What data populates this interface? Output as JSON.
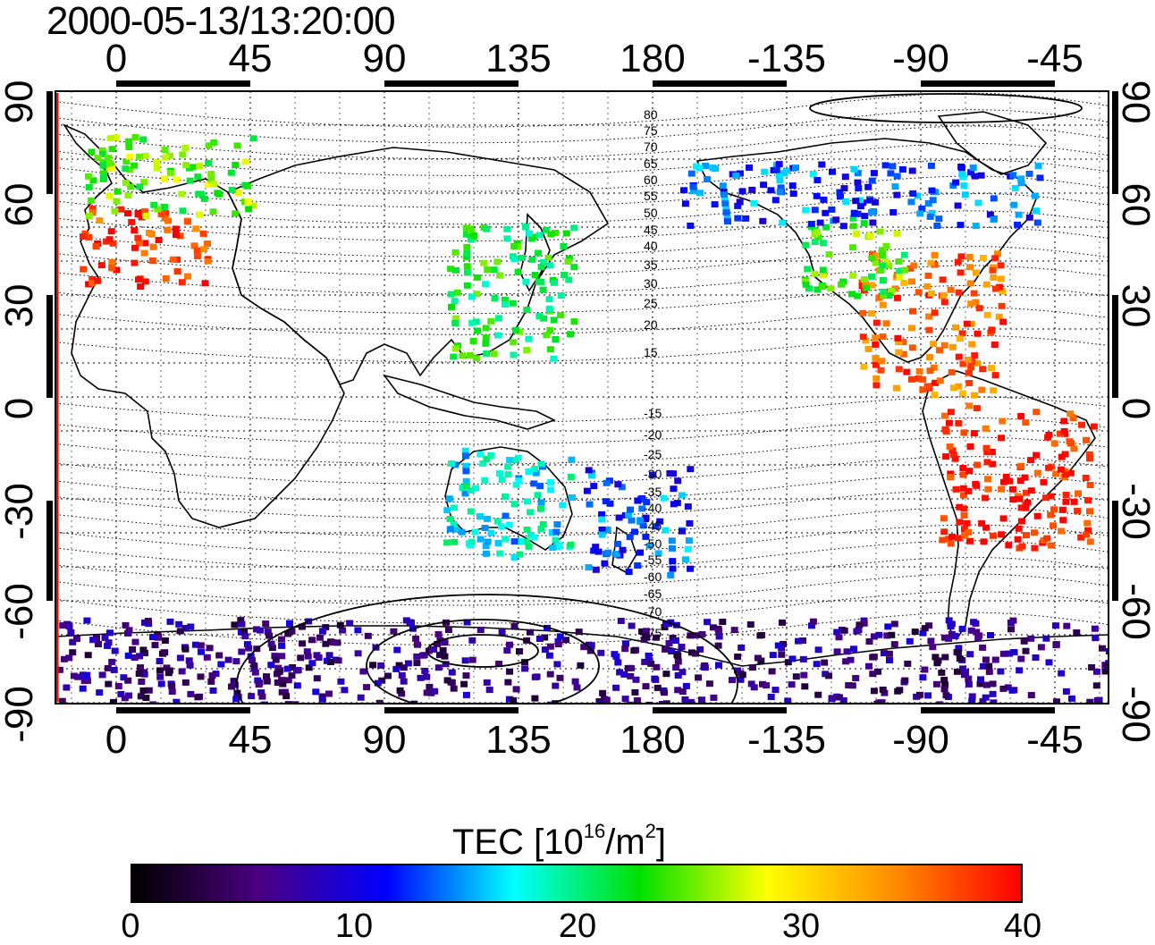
{
  "title": "2000-05-13/13:20:00",
  "map": {
    "longitude_ticks": [
      "0",
      "45",
      "90",
      "135",
      "180",
      "-135",
      "-90",
      "-45"
    ],
    "latitude_ticks": [
      "90",
      "60",
      "30",
      "0",
      "-30",
      "-60",
      "-90"
    ],
    "magnetic_latitude_labels": [
      "80",
      "75",
      "70",
      "65",
      "60",
      "55",
      "50",
      "45",
      "40",
      "35",
      "30",
      "25",
      "20",
      "15",
      "-15",
      "-20",
      "-25",
      "-30",
      "-35",
      "-40",
      "-45",
      "-50",
      "-55",
      "-60",
      "-65",
      "-70",
      "-75"
    ],
    "grid": "dotted",
    "tec_regions": [
      {
        "name": "europe",
        "tec": 38
      },
      {
        "name": "scandinavia",
        "tec": 25
      },
      {
        "name": "north-america-east",
        "tec": 36
      },
      {
        "name": "north-america-west",
        "tec": 24
      },
      {
        "name": "canada-north",
        "tec": 13
      },
      {
        "name": "japan",
        "tec": 22
      },
      {
        "name": "south-america",
        "tec": 39
      },
      {
        "name": "australia",
        "tec": 17
      },
      {
        "name": "new-zealand",
        "tec": 13
      },
      {
        "name": "antarctica",
        "tec": 6
      }
    ]
  },
  "colorbar": {
    "title_main": "TEC  [10",
    "title_exp1": "16",
    "title_mid": "/m",
    "title_exp2": "2",
    "title_end": "]",
    "ticks": [
      "0",
      "10",
      "20",
      "30",
      "40"
    ],
    "range": [
      0,
      40
    ],
    "stops": [
      "#000000",
      "#4b0082",
      "#0000ff",
      "#00ffff",
      "#00e000",
      "#ffff00",
      "#ff8c00",
      "#ff0000"
    ]
  }
}
